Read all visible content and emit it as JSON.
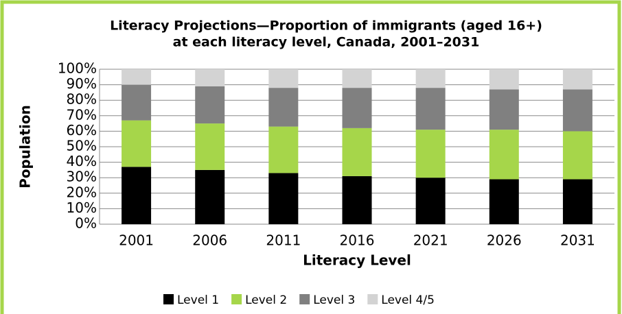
{
  "chart_data": {
    "type": "stacked_bar",
    "title": [
      "Literacy Projections—Proportion of immigrants (aged 16+)",
      "at each literacy level, Canada, 2001–2031"
    ],
    "xlabel": "Literacy Level",
    "ylabel": "Population",
    "categories": [
      "2001",
      "2006",
      "2011",
      "2016",
      "2021",
      "2026",
      "2031"
    ],
    "series": [
      {
        "name": "Level 1",
        "color": "#000000",
        "values": [
          37,
          35,
          33,
          31,
          30,
          29,
          29
        ]
      },
      {
        "name": "Level 2",
        "color": "#a6d64a",
        "values": [
          30,
          30,
          30,
          31,
          31,
          32,
          31
        ]
      },
      {
        "name": "Level 3",
        "color": "#808080",
        "values": [
          23,
          24,
          25,
          26,
          27,
          26,
          27
        ]
      },
      {
        "name": "Level 4/5",
        "color": "#d3d3d3",
        "values": [
          10,
          11,
          12,
          12,
          12,
          13,
          13
        ]
      }
    ],
    "ylim": [
      0,
      100
    ],
    "yticks": [
      {
        "value": 0,
        "label": "0%"
      },
      {
        "value": 10,
        "label": "10%"
      },
      {
        "value": 20,
        "label": "20%"
      },
      {
        "value": 30,
        "label": "30%"
      },
      {
        "value": 40,
        "label": "40%"
      },
      {
        "value": 50,
        "label": "50%"
      },
      {
        "value": 60,
        "label": "60%"
      },
      {
        "value": 70,
        "label": "70%"
      },
      {
        "value": 80,
        "label": "80%"
      },
      {
        "value": 90,
        "label": "90%"
      },
      {
        "value": 100,
        "label": "100%"
      }
    ],
    "grid": true,
    "legend": "bottom"
  }
}
